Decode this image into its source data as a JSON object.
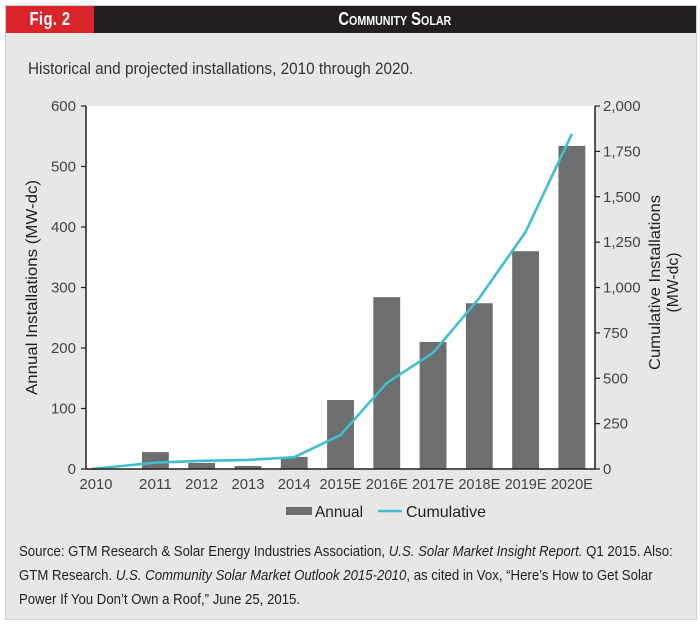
{
  "header": {
    "fig_label": "Fig. 2",
    "title": "Community Solar",
    "fig_color": "#d9252a",
    "bar_color": "#231f20"
  },
  "subtitle": "Historical and projected installations, 2010 through 2020.",
  "legend": {
    "annual": "Annual",
    "cumulative": "Cumulative"
  },
  "source": {
    "label": "Source",
    "part1": ": GTM Research & Solar Energy Industries Association, ",
    "italic1": "U.S. Solar Market Insight Report.",
    "part2": " Q1 2015. Also: GTM Research. ",
    "italic2": "U.S. Community Solar Market Outlook 2015-2010",
    "part3": ", as cited in Vox, “Here’s How to Get Solar Power If You Don’t Own a Roof,” June 25, 2015."
  },
  "chart_data": {
    "type": "bar",
    "title": "Community Solar",
    "subtitle": "Historical and projected installations, 2010 through 2020.",
    "categories": [
      "2010",
      "2011",
      "2012",
      "2013",
      "2014",
      "2015E",
      "2016E",
      "2017E",
      "2018E",
      "2019E",
      "2020E"
    ],
    "series": [
      {
        "name": "Annual",
        "type": "bar",
        "axis": "left",
        "color": "#6d6e70",
        "values": [
          0,
          28,
          10,
          5,
          20,
          114,
          284,
          210,
          274,
          360,
          534
        ]
      },
      {
        "name": "Cumulative",
        "type": "line",
        "axis": "right",
        "color": "#3fbfd1",
        "values": [
          0,
          35,
          45,
          50,
          65,
          187,
          474,
          640,
          942,
          1306,
          1846
        ]
      }
    ],
    "ylabel": "Annual Installations (MW-dc)",
    "ylim": [
      0,
      600
    ],
    "yticks": [
      "0",
      "100",
      "200",
      "300",
      "400",
      "500",
      "600"
    ],
    "y2label_lines": [
      "Cumulative Installations",
      "(MW-dc)"
    ],
    "y2lim": [
      0,
      2000
    ],
    "y2ticks": [
      "0",
      "250",
      "500",
      "750",
      "1,000",
      "1,250",
      "1,500",
      "1,750",
      "2,000"
    ],
    "grid": false,
    "legend_position": "bottom"
  }
}
